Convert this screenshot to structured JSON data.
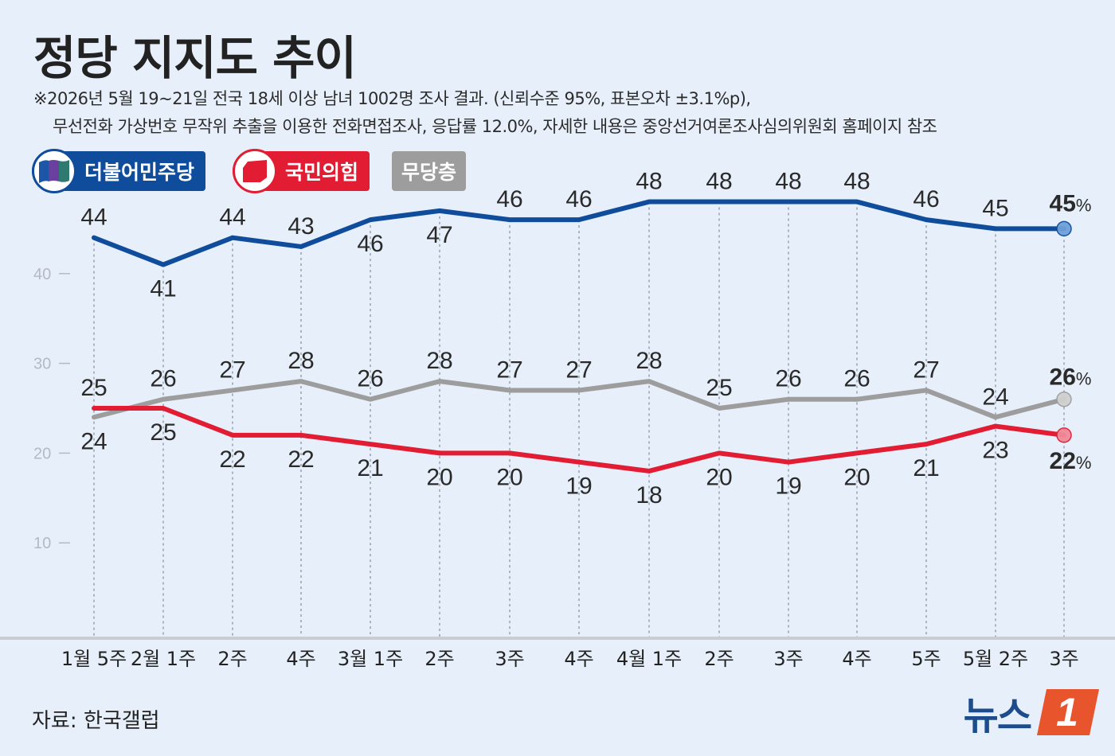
{
  "title": "정당 지지도 추이",
  "subtitle_line1": "※2026년 5월 19~21일 전국 18세 이상 남녀 1002명 조사 결과. (신뢰수준 95%, 표본오차 ±3.1%p),",
  "subtitle_line2": "무선전화 가상번호 무작위 추출을 이용한 전화면접조사, 응답률 12.0%, 자세한 내용은 중앙선거여론조사심의위원회 홈페이지 참조",
  "source": "자료: 한국갤럽",
  "brand": "뉴스1",
  "brand_number": "1",
  "brand_text": "뉴스",
  "legend": [
    {
      "name": "더불어민주당",
      "color": "#0f4c9b",
      "icon": "democratic-party-logo-icon"
    },
    {
      "name": "국민의힘",
      "color": "#e21d33",
      "icon": "people-power-party-logo-icon"
    },
    {
      "name": "무당층",
      "color": "#9d9d9d"
    }
  ],
  "chart_data": {
    "type": "line",
    "title": "정당 지지도 추이",
    "categories": [
      "1월 5주",
      "2월 1주",
      "2주",
      "4주",
      "3월 1주",
      "2주",
      "3주",
      "4주",
      "4월 1주",
      "2주",
      "3주",
      "4주",
      "5주",
      "5월 2주",
      "3주"
    ],
    "ylim": [
      0,
      50
    ],
    "yticks": [
      10,
      20,
      30,
      40
    ],
    "grid": "vertical-dotted",
    "legend_position": "top-left",
    "last_value_suffix": "%",
    "series": [
      {
        "name": "더불어민주당",
        "color": "#0f4c9b",
        "values": [
          44,
          41,
          44,
          43,
          46,
          47,
          46,
          46,
          48,
          48,
          48,
          48,
          46,
          45,
          45
        ]
      },
      {
        "name": "국민의힘",
        "color": "#e21d33",
        "values": [
          25,
          25,
          22,
          22,
          21,
          20,
          20,
          19,
          18,
          20,
          19,
          20,
          21,
          23,
          22
        ]
      },
      {
        "name": "무당층",
        "color": "#9d9d9d",
        "values": [
          24,
          26,
          27,
          28,
          26,
          28,
          27,
          27,
          28,
          25,
          26,
          26,
          27,
          24,
          26
        ]
      }
    ]
  }
}
